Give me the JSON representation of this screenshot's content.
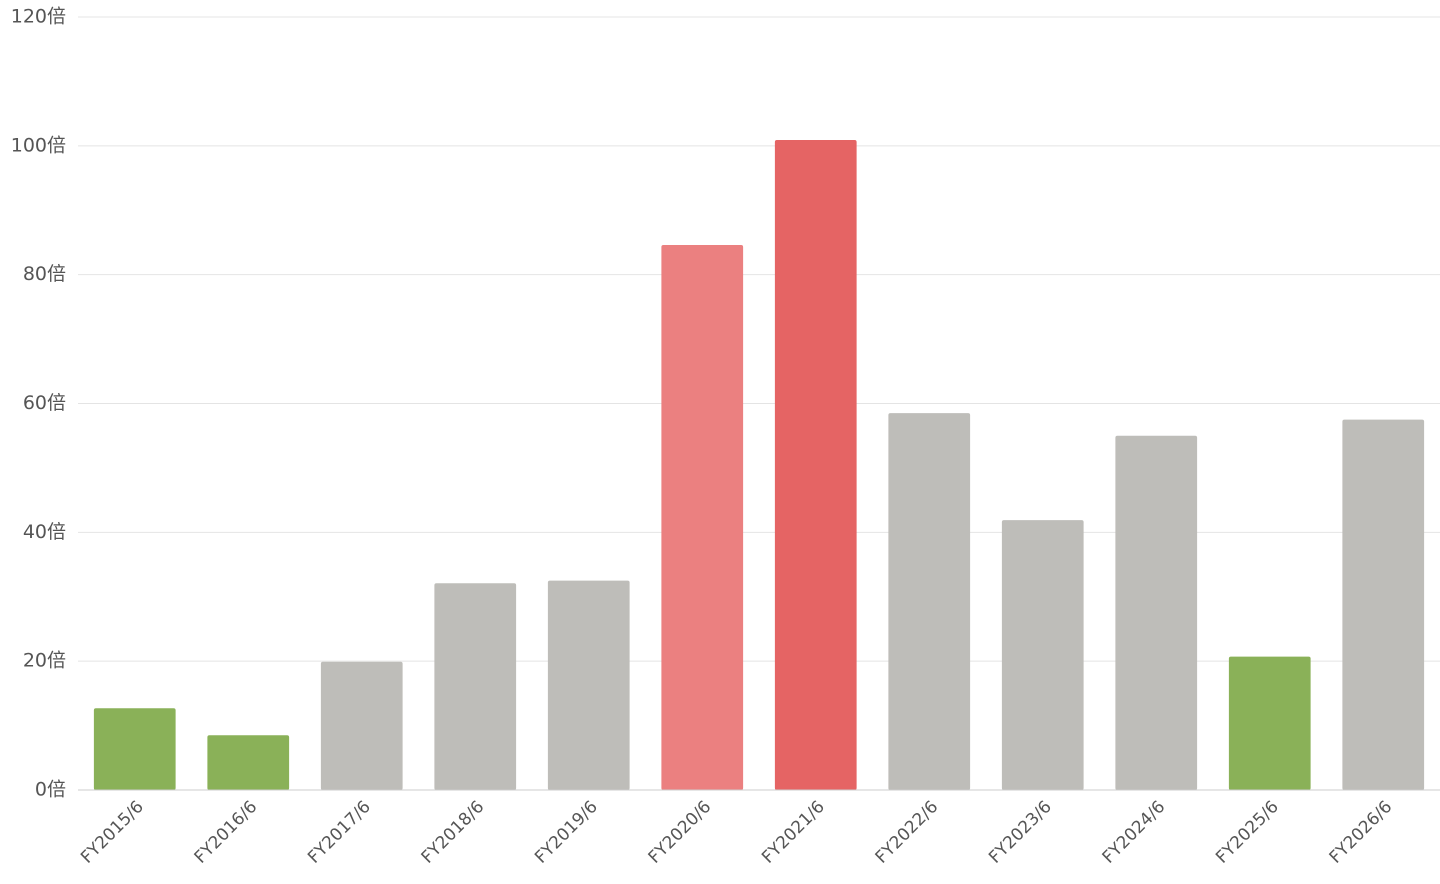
{
  "chart_data": {
    "type": "bar",
    "categories": [
      "FY2015/6",
      "FY2016/6",
      "FY2017/6",
      "FY2018/6",
      "FY2019/6",
      "FY2020/6",
      "FY2021/6",
      "FY2022/6",
      "FY2023/6",
      "FY2024/6",
      "FY2025/6",
      "FY2026/6"
    ],
    "values": [
      12.7,
      8.5,
      19.9,
      32.1,
      32.5,
      84.6,
      100.9,
      58.5,
      41.9,
      55.0,
      20.7,
      57.5
    ],
    "colors": [
      "#8ab158",
      "#8ab158",
      "#bebdb9",
      "#bebdb9",
      "#bebdb9",
      "#eb8080",
      "#e56464",
      "#bebdb9",
      "#bebdb9",
      "#bebdb9",
      "#8ab158",
      "#bebdb9"
    ],
    "ylim": [
      0,
      120
    ],
    "yticks": [
      {
        "value": 0,
        "label": "0倍"
      },
      {
        "value": 20,
        "label": "20倍"
      },
      {
        "value": 40,
        "label": "40倍"
      },
      {
        "value": 60,
        "label": "60倍"
      },
      {
        "value": 80,
        "label": "80倍"
      },
      {
        "value": 100,
        "label": "100倍"
      },
      {
        "value": 120,
        "label": "120倍"
      }
    ],
    "grid": true
  }
}
